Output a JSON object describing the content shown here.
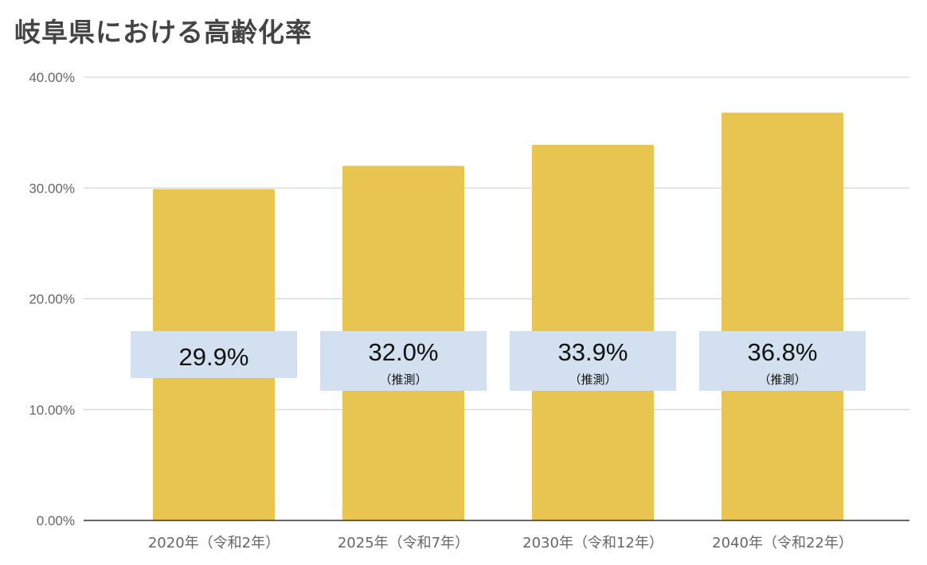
{
  "chart_data": {
    "type": "bar",
    "title": "岐阜県における高齢化率",
    "categories": [
      "2020年（令和2年）",
      "2025年（令和7年）",
      "2030年（令和12年）",
      "2040年（令和22年）"
    ],
    "values": [
      29.9,
      32.0,
      33.9,
      36.8
    ],
    "data_labels": [
      "29.9%",
      "32.0%",
      "33.9%",
      "36.8%"
    ],
    "data_label_notes": [
      "",
      "（推測）",
      "（推測）",
      "（推測）"
    ],
    "yticks": [
      "0.00%",
      "10.00%",
      "20.00%",
      "30.00%",
      "40.00%"
    ],
    "ylim": [
      0,
      40
    ],
    "xlabel": "",
    "ylabel": "",
    "grid": true,
    "colors": {
      "bar": "#E8C451",
      "label_bg": "#D3E0EF",
      "grid": "#CCCCCC"
    }
  }
}
